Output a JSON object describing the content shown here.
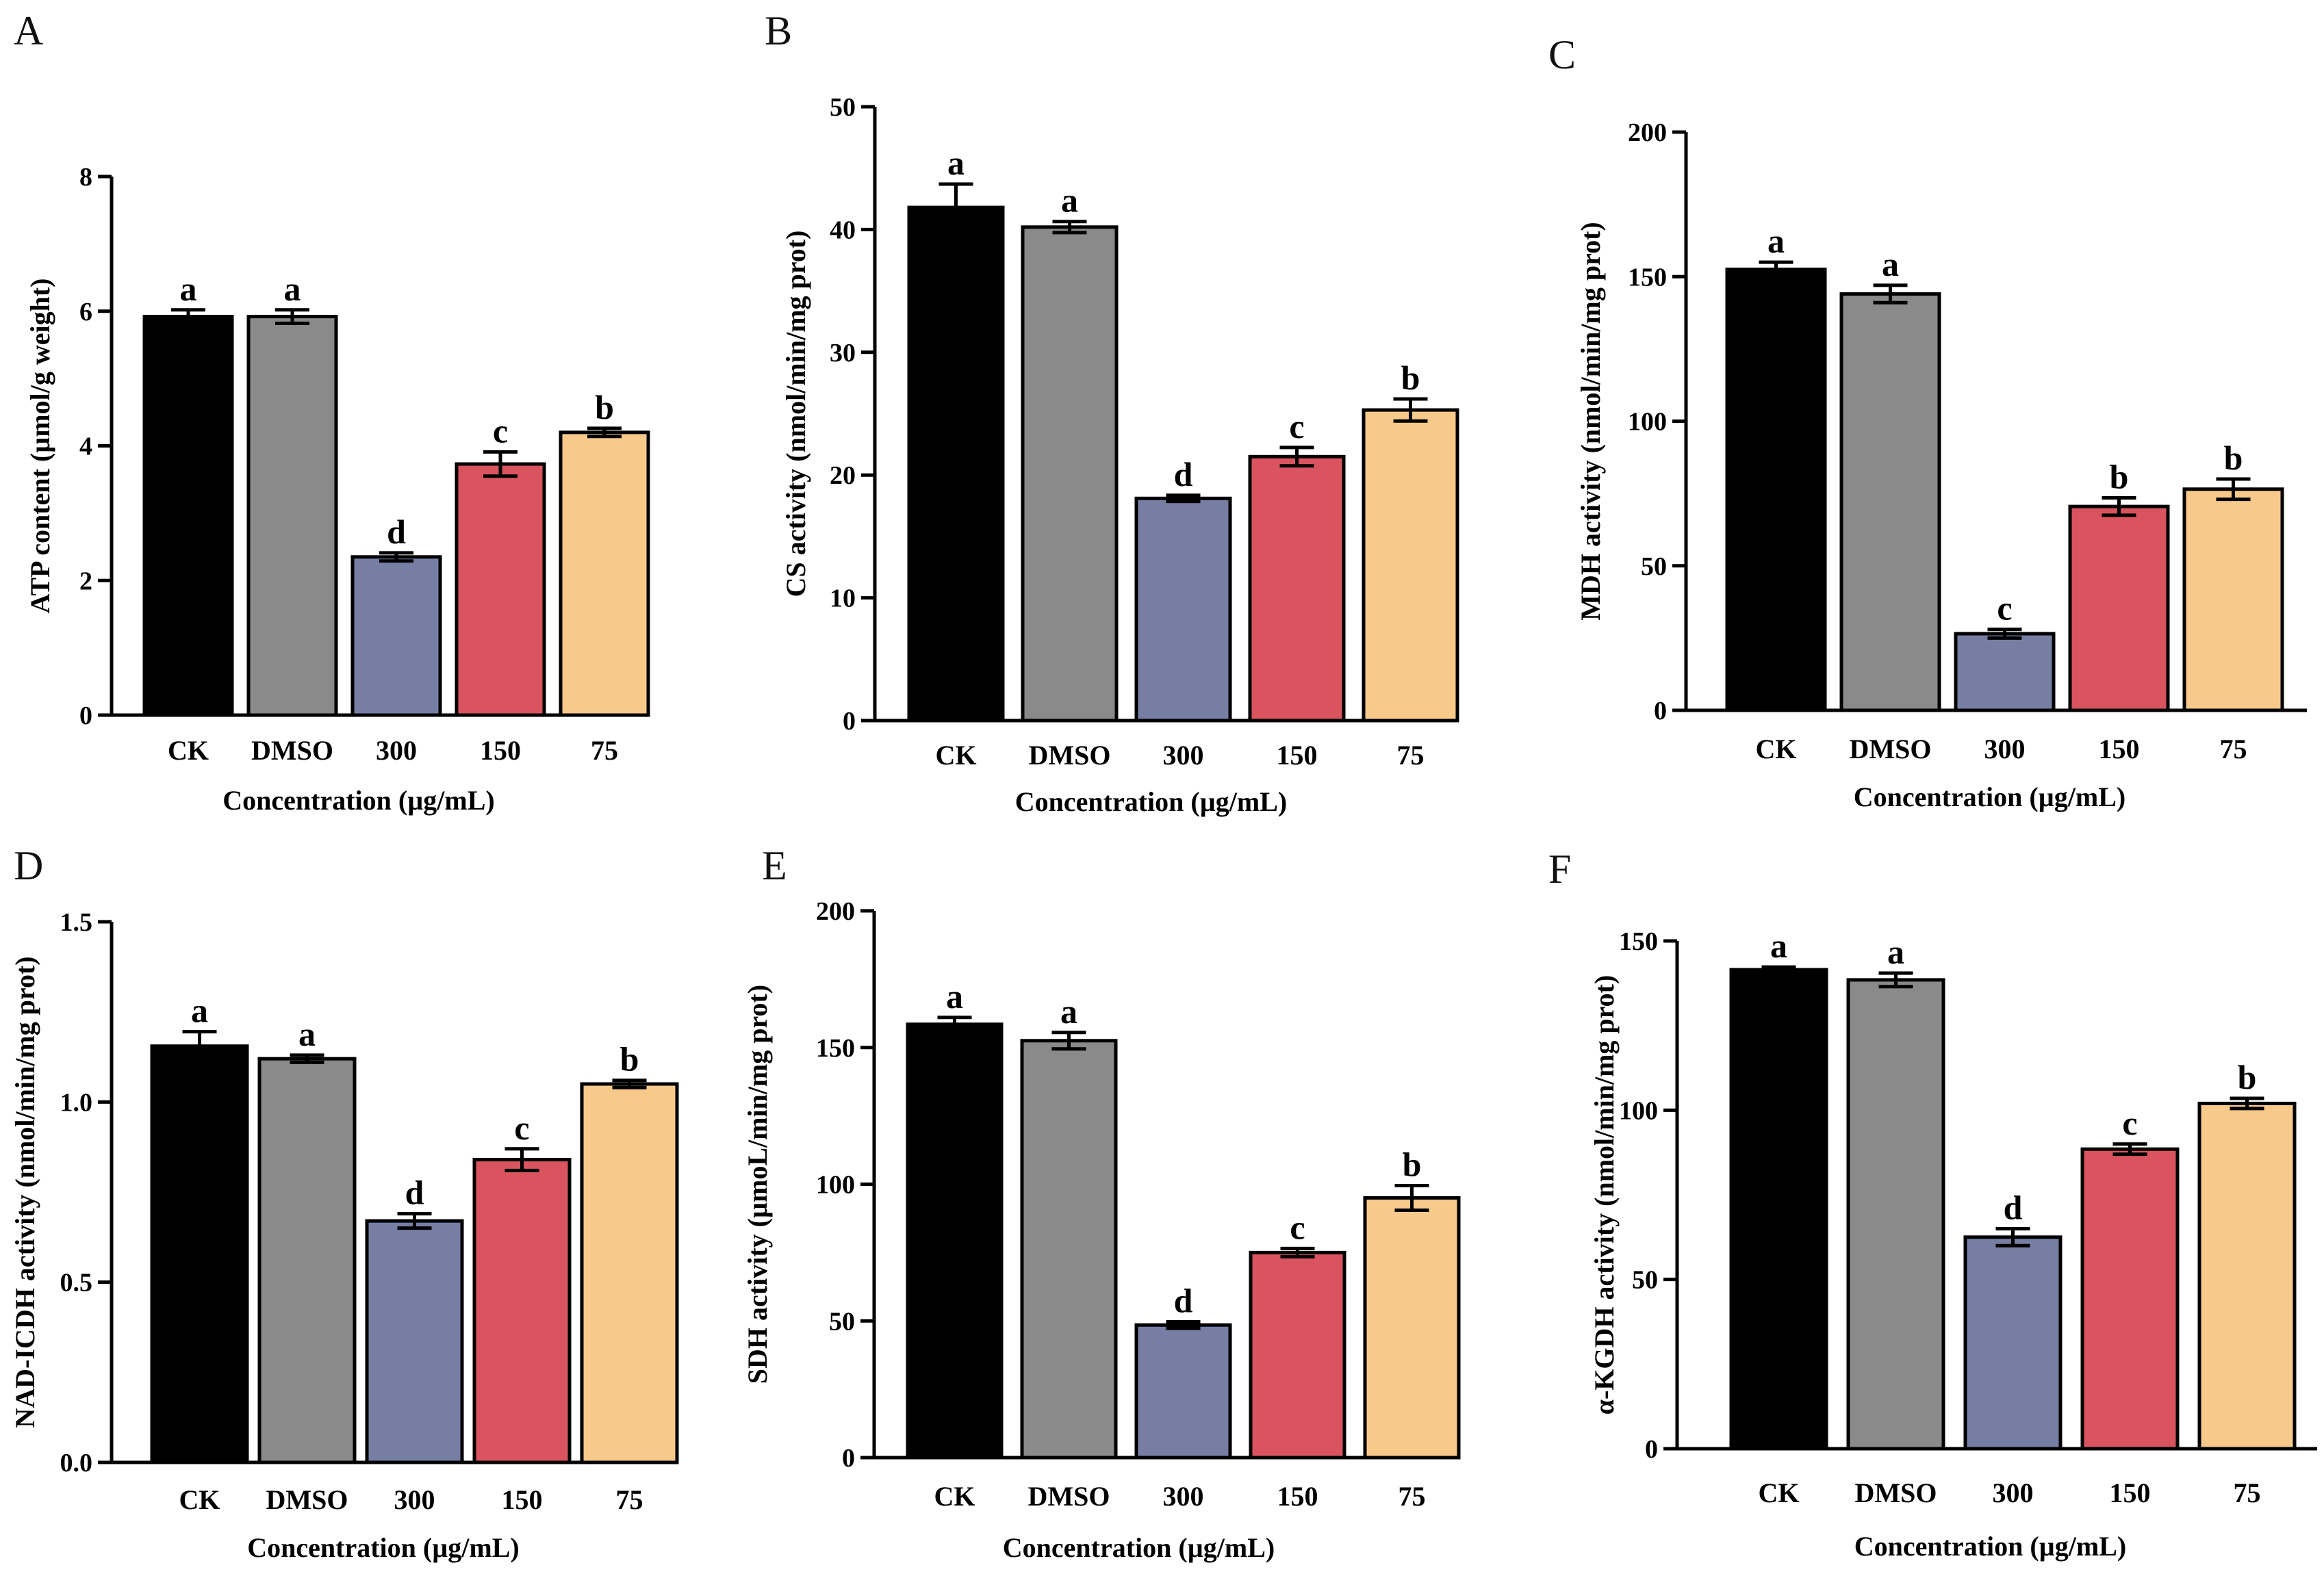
{
  "colors": [
    "#000000",
    "#8a8a8a",
    "#767ea4",
    "#d9545f",
    "#f7c98a"
  ],
  "chart_data": [
    {
      "panel": "A",
      "type": "bar",
      "categories": [
        "CK",
        "DMSO",
        "300",
        "150",
        "75"
      ],
      "values": [
        5.92,
        5.92,
        2.35,
        3.73,
        4.2
      ],
      "errors": [
        0.1,
        0.1,
        0.06,
        0.18,
        0.06
      ],
      "labels": [
        "a",
        "a",
        "d",
        "c",
        "b"
      ],
      "ylabel": "ATP content (µmol/g weight)",
      "xlabel": "Concentration (µg/mL)",
      "ylim": [
        0,
        8
      ],
      "yticks": [
        0,
        2,
        4,
        6,
        8
      ],
      "ytick_labels": [
        "0",
        "2",
        "4",
        "6",
        "8"
      ]
    },
    {
      "panel": "B",
      "type": "bar",
      "categories": [
        "CK",
        "DMSO",
        "300",
        "150",
        "75"
      ],
      "values": [
        41.8,
        40.2,
        18.1,
        21.5,
        25.3
      ],
      "errors": [
        1.9,
        0.45,
        0.25,
        0.75,
        0.9
      ],
      "labels": [
        "a",
        "a",
        "d",
        "c",
        "b"
      ],
      "ylabel": "CS activity (nmol/min/mg prot)",
      "xlabel": "Concentration (µg/mL)",
      "ylim": [
        0,
        50
      ],
      "yticks": [
        0,
        10,
        20,
        30,
        40,
        50
      ],
      "ytick_labels": [
        "0",
        "10",
        "20",
        "30",
        "40",
        "50"
      ]
    },
    {
      "panel": "C",
      "type": "bar",
      "categories": [
        "CK",
        "DMSO",
        "300",
        "150",
        "75"
      ],
      "values": [
        152.5,
        144,
        26.5,
        70.5,
        76.5
      ],
      "errors": [
        2.5,
        3,
        1.5,
        3,
        3.5
      ],
      "labels": [
        "a",
        "a",
        "c",
        "b",
        "b"
      ],
      "ylabel": "MDH activity (nmol/min/mg prot)",
      "xlabel": "Concentration (µg/mL)",
      "ylim": [
        0,
        200
      ],
      "yticks": [
        0,
        50,
        100,
        150,
        200
      ],
      "ytick_labels": [
        "0",
        "50",
        "100",
        "150",
        "200"
      ]
    },
    {
      "panel": "D",
      "type": "bar",
      "categories": [
        "CK",
        "DMSO",
        "300",
        "150",
        "75"
      ],
      "values": [
        1.155,
        1.12,
        0.67,
        0.84,
        1.05
      ],
      "errors": [
        0.04,
        0.01,
        0.02,
        0.03,
        0.01
      ],
      "labels": [
        "a",
        "a",
        "d",
        "c",
        "b"
      ],
      "ylabel": "NAD-ICDH activity (nmol/min/mg prot)",
      "xlabel": "Concentration (µg/mL)",
      "ylim": [
        0,
        1.5
      ],
      "yticks": [
        0,
        0.5,
        1.0,
        1.5
      ],
      "ytick_labels": [
        "0.0",
        "0.5",
        "1.0",
        "1.5"
      ]
    },
    {
      "panel": "E",
      "type": "bar",
      "categories": [
        "CK",
        "DMSO",
        "300",
        "150",
        "75"
      ],
      "values": [
        158.5,
        152.5,
        48.5,
        75,
        95
      ],
      "errors": [
        2.5,
        3,
        1.2,
        1.5,
        4.5
      ],
      "labels": [
        "a",
        "a",
        "d",
        "c",
        "b"
      ],
      "ylabel": "SDH activity (µmoL/min/mg prot)",
      "xlabel": "Concentration (µg/mL)",
      "ylim": [
        0,
        200
      ],
      "yticks": [
        0,
        50,
        100,
        150,
        200
      ],
      "ytick_labels": [
        "0",
        "50",
        "100",
        "150",
        "200"
      ]
    },
    {
      "panel": "F",
      "type": "bar",
      "categories": [
        "CK",
        "DMSO",
        "300",
        "150",
        "75"
      ],
      "values": [
        141.5,
        138.5,
        62.5,
        88.5,
        102
      ],
      "errors": [
        0.8,
        2,
        2.5,
        1.5,
        1.5
      ],
      "labels": [
        "a",
        "a",
        "d",
        "c",
        "b"
      ],
      "ylabel": "α-KGDH activity (nmol/min/mg prot)",
      "xlabel": "Concentration (µg/mL)",
      "ylim": [
        0,
        150
      ],
      "yticks": [
        0,
        50,
        100,
        150
      ],
      "ytick_labels": [
        "0",
        "50",
        "100",
        "150"
      ]
    }
  ]
}
